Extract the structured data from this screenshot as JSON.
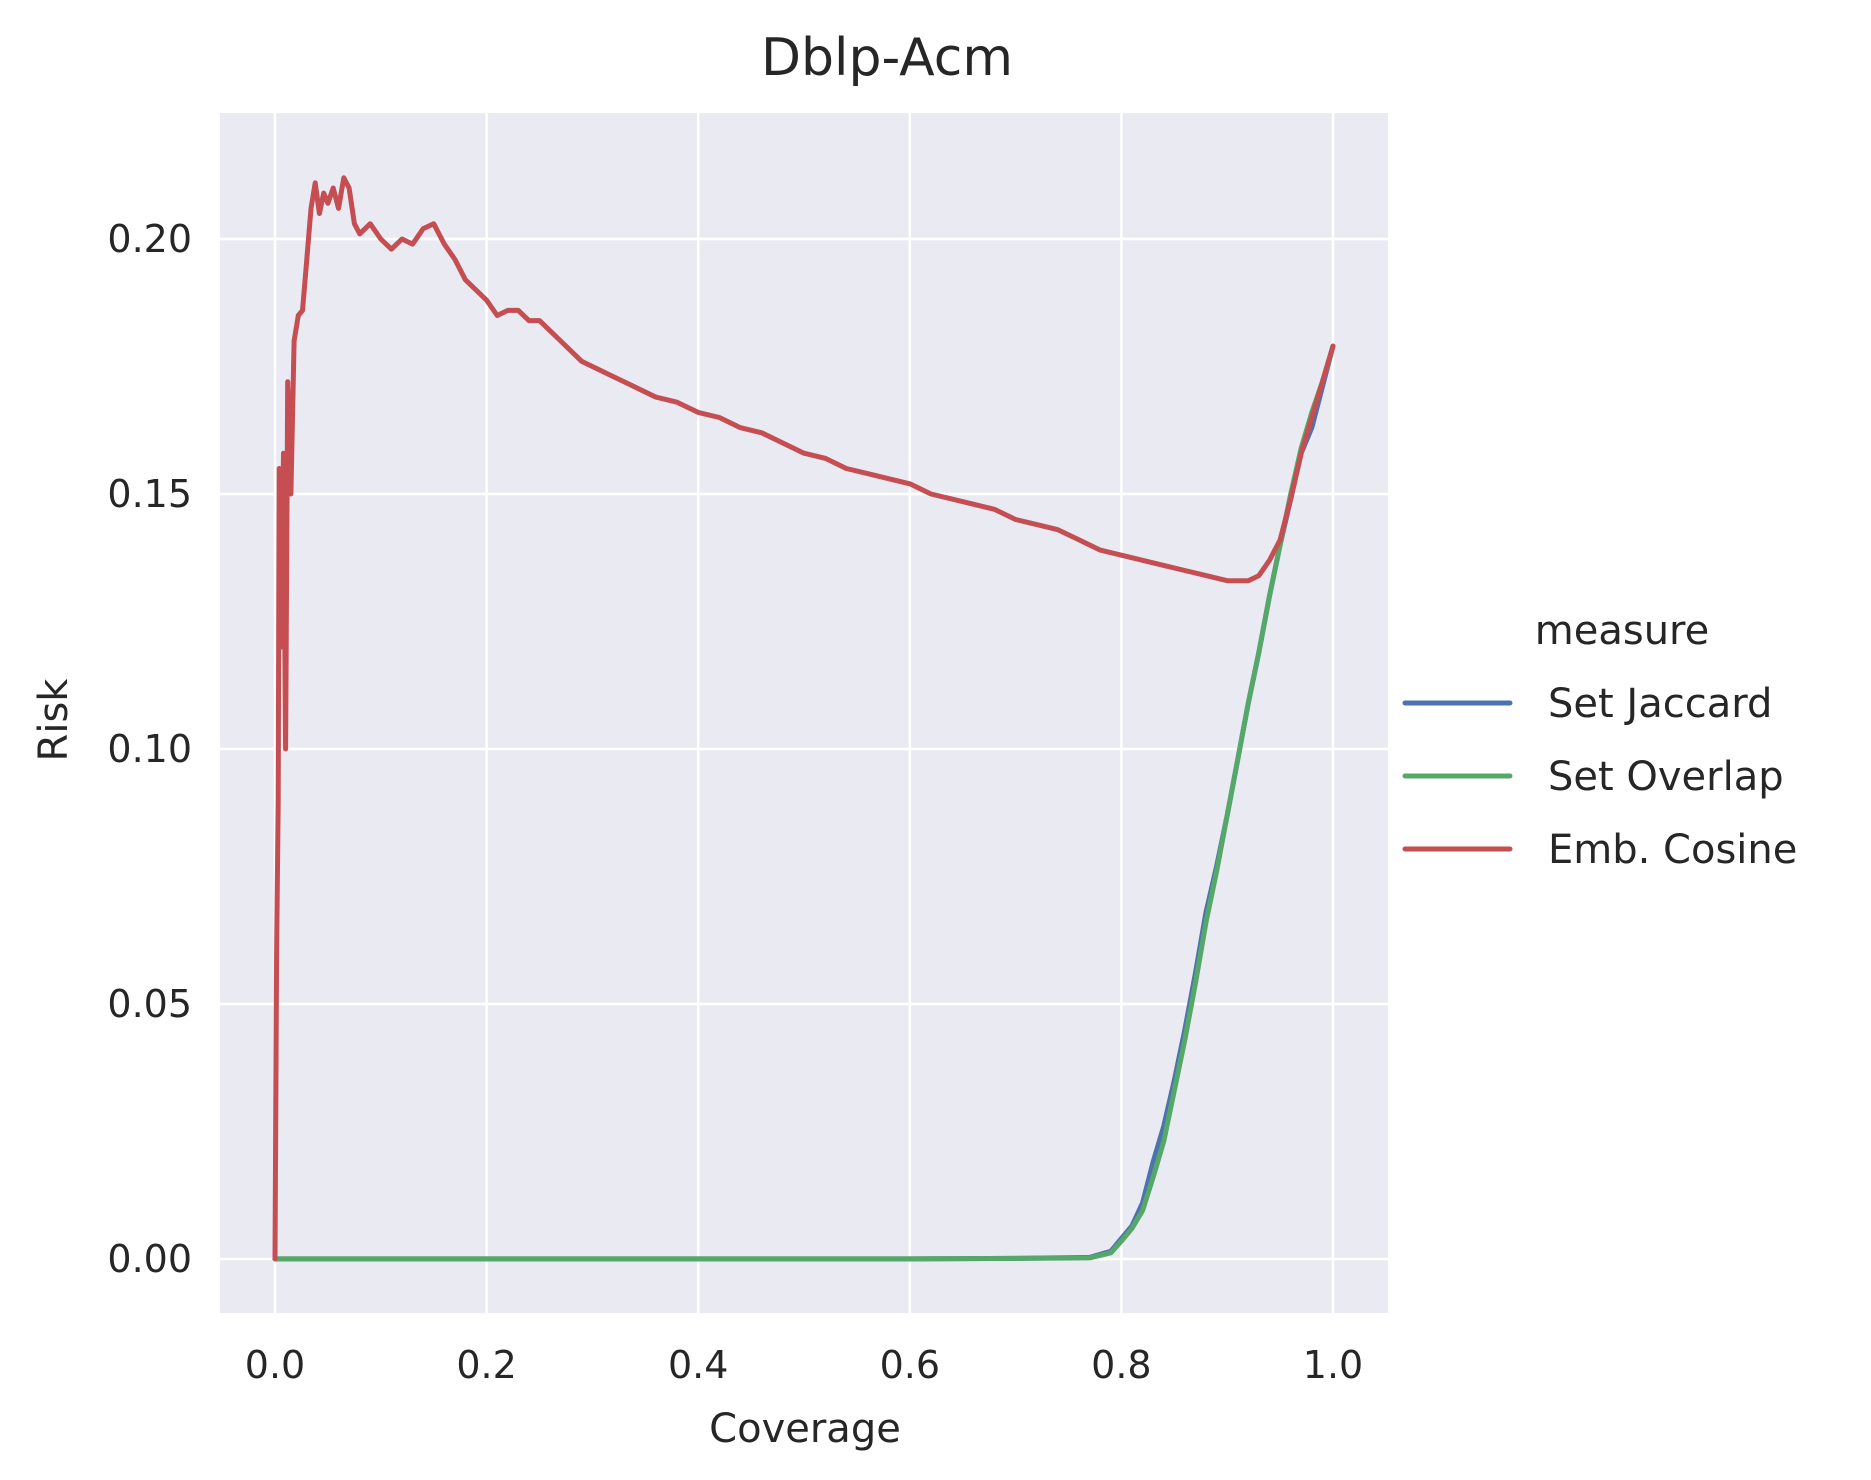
{
  "chart_data": {
    "type": "line",
    "title": "Dblp-Acm",
    "xlabel": "Coverage",
    "ylabel": "Risk",
    "xlim": [
      -0.052,
      1.052
    ],
    "ylim": [
      -0.0106,
      0.2247
    ],
    "xticks": [
      0.0,
      0.2,
      0.4,
      0.6,
      0.8,
      1.0
    ],
    "xtick_labels": [
      "0.0",
      "0.2",
      "0.4",
      "0.6",
      "0.8",
      "1.0"
    ],
    "yticks": [
      0.0,
      0.05,
      0.1,
      0.15,
      0.2
    ],
    "ytick_labels": [
      "0.00",
      "0.05",
      "0.10",
      "0.15",
      "0.20"
    ],
    "grid": true,
    "background": "#eaeaf2",
    "legend": {
      "title": "measure",
      "placement": "outside-right"
    },
    "series": [
      {
        "name": "Set Jaccard",
        "color": "#4c72b0",
        "points": [
          [
            0.0,
            0.0
          ],
          [
            0.2,
            0.0
          ],
          [
            0.4,
            0.0
          ],
          [
            0.6,
            0.0
          ],
          [
            0.7,
            0.0001
          ],
          [
            0.77,
            0.0003
          ],
          [
            0.79,
            0.0015
          ],
          [
            0.8,
            0.004
          ],
          [
            0.81,
            0.0065
          ],
          [
            0.82,
            0.011
          ],
          [
            0.83,
            0.019
          ],
          [
            0.84,
            0.026
          ],
          [
            0.85,
            0.035
          ],
          [
            0.86,
            0.045
          ],
          [
            0.87,
            0.056
          ],
          [
            0.88,
            0.068
          ],
          [
            0.89,
            0.077
          ],
          [
            0.9,
            0.087
          ],
          [
            0.91,
            0.098
          ],
          [
            0.92,
            0.109
          ],
          [
            0.93,
            0.119
          ],
          [
            0.94,
            0.13
          ],
          [
            0.95,
            0.14
          ],
          [
            0.96,
            0.149
          ],
          [
            0.97,
            0.158
          ],
          [
            0.98,
            0.163
          ],
          [
            0.99,
            0.171
          ],
          [
            1.0,
            0.179
          ]
        ]
      },
      {
        "name": "Set Overlap",
        "color": "#55a868",
        "points": [
          [
            0.0,
            0.0
          ],
          [
            0.2,
            0.0
          ],
          [
            0.4,
            0.0
          ],
          [
            0.6,
            0.0
          ],
          [
            0.7,
            0.0001
          ],
          [
            0.77,
            0.0002
          ],
          [
            0.79,
            0.0012
          ],
          [
            0.8,
            0.0035
          ],
          [
            0.81,
            0.006
          ],
          [
            0.82,
            0.0095
          ],
          [
            0.83,
            0.016
          ],
          [
            0.84,
            0.023
          ],
          [
            0.85,
            0.033
          ],
          [
            0.86,
            0.043
          ],
          [
            0.87,
            0.054
          ],
          [
            0.88,
            0.066
          ],
          [
            0.89,
            0.076
          ],
          [
            0.9,
            0.087
          ],
          [
            0.91,
            0.098
          ],
          [
            0.92,
            0.109
          ],
          [
            0.93,
            0.119
          ],
          [
            0.94,
            0.13
          ],
          [
            0.95,
            0.14
          ],
          [
            0.96,
            0.15
          ],
          [
            0.97,
            0.159
          ],
          [
            0.98,
            0.166
          ],
          [
            0.99,
            0.172
          ],
          [
            1.0,
            0.179
          ]
        ]
      },
      {
        "name": "Emb. Cosine",
        "color": "#c44e52",
        "points": [
          [
            0.0,
            0.0
          ],
          [
            0.0015,
            0.06
          ],
          [
            0.003,
            0.09
          ],
          [
            0.004,
            0.155
          ],
          [
            0.006,
            0.12
          ],
          [
            0.008,
            0.158
          ],
          [
            0.01,
            0.1
          ],
          [
            0.012,
            0.172
          ],
          [
            0.015,
            0.15
          ],
          [
            0.018,
            0.18
          ],
          [
            0.022,
            0.185
          ],
          [
            0.026,
            0.186
          ],
          [
            0.03,
            0.196
          ],
          [
            0.034,
            0.206
          ],
          [
            0.038,
            0.211
          ],
          [
            0.042,
            0.205
          ],
          [
            0.046,
            0.209
          ],
          [
            0.05,
            0.207
          ],
          [
            0.055,
            0.21
          ],
          [
            0.06,
            0.206
          ],
          [
            0.065,
            0.212
          ],
          [
            0.07,
            0.21
          ],
          [
            0.075,
            0.203
          ],
          [
            0.08,
            0.201
          ],
          [
            0.09,
            0.203
          ],
          [
            0.1,
            0.2
          ],
          [
            0.11,
            0.198
          ],
          [
            0.12,
            0.2
          ],
          [
            0.13,
            0.199
          ],
          [
            0.14,
            0.202
          ],
          [
            0.15,
            0.203
          ],
          [
            0.16,
            0.199
          ],
          [
            0.17,
            0.196
          ],
          [
            0.18,
            0.192
          ],
          [
            0.19,
            0.19
          ],
          [
            0.2,
            0.188
          ],
          [
            0.21,
            0.185
          ],
          [
            0.22,
            0.186
          ],
          [
            0.23,
            0.186
          ],
          [
            0.24,
            0.184
          ],
          [
            0.25,
            0.184
          ],
          [
            0.26,
            0.182
          ],
          [
            0.27,
            0.18
          ],
          [
            0.28,
            0.178
          ],
          [
            0.29,
            0.176
          ],
          [
            0.3,
            0.175
          ],
          [
            0.32,
            0.173
          ],
          [
            0.34,
            0.171
          ],
          [
            0.36,
            0.169
          ],
          [
            0.38,
            0.168
          ],
          [
            0.4,
            0.166
          ],
          [
            0.42,
            0.165
          ],
          [
            0.44,
            0.163
          ],
          [
            0.46,
            0.162
          ],
          [
            0.48,
            0.16
          ],
          [
            0.5,
            0.158
          ],
          [
            0.52,
            0.157
          ],
          [
            0.54,
            0.155
          ],
          [
            0.56,
            0.154
          ],
          [
            0.58,
            0.153
          ],
          [
            0.6,
            0.152
          ],
          [
            0.62,
            0.15
          ],
          [
            0.64,
            0.149
          ],
          [
            0.66,
            0.148
          ],
          [
            0.68,
            0.147
          ],
          [
            0.7,
            0.145
          ],
          [
            0.72,
            0.144
          ],
          [
            0.74,
            0.143
          ],
          [
            0.76,
            0.141
          ],
          [
            0.78,
            0.139
          ],
          [
            0.8,
            0.138
          ],
          [
            0.82,
            0.137
          ],
          [
            0.84,
            0.136
          ],
          [
            0.86,
            0.135
          ],
          [
            0.88,
            0.134
          ],
          [
            0.9,
            0.133
          ],
          [
            0.92,
            0.133
          ],
          [
            0.93,
            0.134
          ],
          [
            0.94,
            0.137
          ],
          [
            0.95,
            0.141
          ],
          [
            0.96,
            0.149
          ],
          [
            0.97,
            0.158
          ],
          [
            0.98,
            0.165
          ],
          [
            0.99,
            0.172
          ],
          [
            1.0,
            0.179
          ]
        ]
      }
    ]
  }
}
